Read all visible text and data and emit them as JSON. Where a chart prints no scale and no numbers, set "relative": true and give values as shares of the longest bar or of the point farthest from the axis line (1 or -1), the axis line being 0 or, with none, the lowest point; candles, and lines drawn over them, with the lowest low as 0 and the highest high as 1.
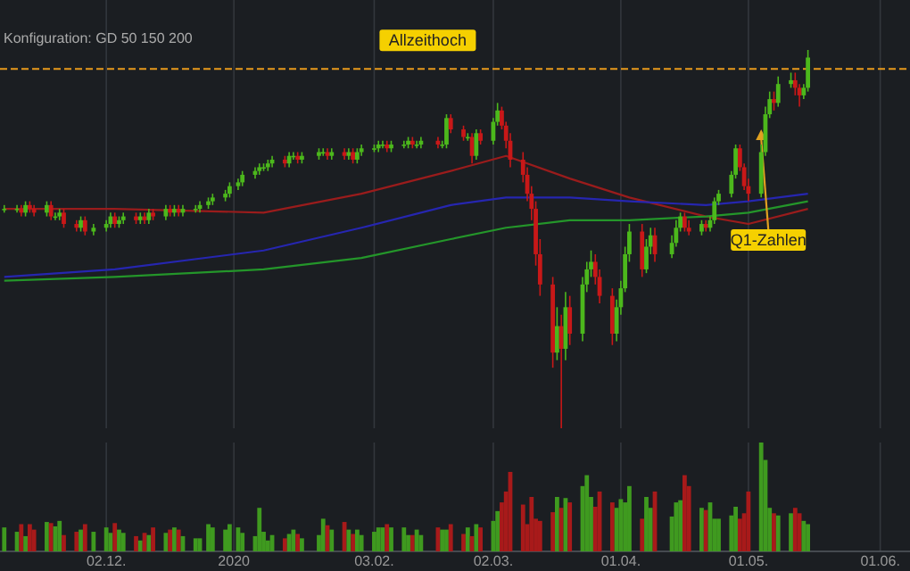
{
  "chart_data": [
    {
      "type": "candlestick",
      "subtitle": "Konfiguration: GD 50 150 200",
      "relative": true,
      "grid": "x",
      "tick_labels": false,
      "xlim": [
        "2019-11-07",
        "2020-06-08"
      ],
      "xticks": [
        {
          "value": "2019-12-02",
          "label": null
        },
        {
          "value": "2020-01-01",
          "label": null
        },
        {
          "value": "2020-02-03",
          "label": null
        },
        {
          "value": "2020-03-02",
          "label": null
        },
        {
          "value": "2020-04-01",
          "label": null
        },
        {
          "value": "2020-05-01",
          "label": null
        },
        {
          "value": "2020-06-01",
          "label": null
        }
      ],
      "x": [
        "2019-11-08",
        "2019-11-11",
        "2019-11-12",
        "2019-11-13",
        "2019-11-14",
        "2019-11-15",
        "2019-11-18",
        "2019-11-19",
        "2019-11-20",
        "2019-11-21",
        "2019-11-22",
        "2019-11-25",
        "2019-11-26",
        "2019-11-27",
        "2019-11-29",
        "2019-12-02",
        "2019-12-03",
        "2019-12-04",
        "2019-12-05",
        "2019-12-06",
        "2019-12-09",
        "2019-12-10",
        "2019-12-11",
        "2019-12-12",
        "2019-12-13",
        "2019-12-16",
        "2019-12-17",
        "2019-12-18",
        "2019-12-19",
        "2019-12-20",
        "2019-12-23",
        "2019-12-24",
        "2019-12-26",
        "2019-12-27",
        "2019-12-30",
        "2019-12-31",
        "2020-01-02",
        "2020-01-03",
        "2020-01-06",
        "2020-01-07",
        "2020-01-08",
        "2020-01-09",
        "2020-01-10",
        "2020-01-13",
        "2020-01-14",
        "2020-01-15",
        "2020-01-16",
        "2020-01-17",
        "2020-01-21",
        "2020-01-22",
        "2020-01-23",
        "2020-01-24",
        "2020-01-27",
        "2020-01-28",
        "2020-01-29",
        "2020-01-30",
        "2020-01-31",
        "2020-02-03",
        "2020-02-04",
        "2020-02-05",
        "2020-02-06",
        "2020-02-07",
        "2020-02-10",
        "2020-02-11",
        "2020-02-12",
        "2020-02-13",
        "2020-02-14",
        "2020-02-18",
        "2020-02-19",
        "2020-02-20",
        "2020-02-21",
        "2020-02-24",
        "2020-02-25",
        "2020-02-26",
        "2020-02-27",
        "2020-02-28",
        "2020-03-02",
        "2020-03-03",
        "2020-03-04",
        "2020-03-05",
        "2020-03-06",
        "2020-03-09",
        "2020-03-10",
        "2020-03-11",
        "2020-03-12",
        "2020-03-13",
        "2020-03-16",
        "2020-03-17",
        "2020-03-18",
        "2020-03-19",
        "2020-03-20",
        "2020-03-23",
        "2020-03-24",
        "2020-03-25",
        "2020-03-26",
        "2020-03-27",
        "2020-03-30",
        "2020-03-31",
        "2020-04-01",
        "2020-04-02",
        "2020-04-03",
        "2020-04-06",
        "2020-04-07",
        "2020-04-08",
        "2020-04-09",
        "2020-04-13",
        "2020-04-14",
        "2020-04-15",
        "2020-04-16",
        "2020-04-17",
        "2020-04-20",
        "2020-04-21",
        "2020-04-22",
        "2020-04-23",
        "2020-04-24",
        "2020-04-27",
        "2020-04-28",
        "2020-04-29",
        "2020-04-30",
        "2020-05-01",
        "2020-05-04",
        "2020-05-05",
        "2020-05-06",
        "2020-05-07",
        "2020-05-08",
        "2020-05-11",
        "2020-05-12",
        "2020-05-13",
        "2020-05-14",
        "2020-05-15"
      ],
      "ohlc": [
        [
          0.58,
          0.59,
          0.57,
          0.58
        ],
        [
          0.58,
          0.59,
          0.57,
          0.58
        ],
        [
          0.58,
          0.59,
          0.56,
          0.57
        ],
        [
          0.57,
          0.6,
          0.56,
          0.59
        ],
        [
          0.59,
          0.6,
          0.57,
          0.58
        ],
        [
          0.58,
          0.59,
          0.56,
          0.57
        ],
        [
          0.57,
          0.6,
          0.56,
          0.59
        ],
        [
          0.59,
          0.6,
          0.55,
          0.56
        ],
        [
          0.56,
          0.57,
          0.55,
          0.56
        ],
        [
          0.56,
          0.58,
          0.55,
          0.57
        ],
        [
          0.57,
          0.58,
          0.53,
          0.54
        ],
        [
          0.54,
          0.55,
          0.52,
          0.53
        ],
        [
          0.53,
          0.56,
          0.52,
          0.55
        ],
        [
          0.55,
          0.56,
          0.51,
          0.52
        ],
        [
          0.52,
          0.54,
          0.51,
          0.53
        ],
        [
          0.53,
          0.55,
          0.52,
          0.54
        ],
        [
          0.54,
          0.57,
          0.53,
          0.56
        ],
        [
          0.56,
          0.57,
          0.53,
          0.54
        ],
        [
          0.54,
          0.56,
          0.53,
          0.55
        ],
        [
          0.55,
          0.57,
          0.54,
          0.56
        ],
        [
          0.56,
          0.57,
          0.54,
          0.55
        ],
        [
          0.55,
          0.57,
          0.54,
          0.56
        ],
        [
          0.56,
          0.57,
          0.54,
          0.55
        ],
        [
          0.55,
          0.58,
          0.54,
          0.57
        ],
        [
          0.57,
          0.58,
          0.55,
          0.56
        ],
        [
          0.56,
          0.59,
          0.55,
          0.58
        ],
        [
          0.58,
          0.59,
          0.56,
          0.57
        ],
        [
          0.57,
          0.59,
          0.56,
          0.58
        ],
        [
          0.58,
          0.59,
          0.56,
          0.57
        ],
        [
          0.57,
          0.59,
          0.56,
          0.58
        ],
        [
          0.58,
          0.59,
          0.57,
          0.58
        ],
        [
          0.58,
          0.6,
          0.57,
          0.59
        ],
        [
          0.59,
          0.61,
          0.58,
          0.6
        ],
        [
          0.6,
          0.62,
          0.59,
          0.61
        ],
        [
          0.61,
          0.63,
          0.6,
          0.62
        ],
        [
          0.62,
          0.65,
          0.61,
          0.64
        ],
        [
          0.64,
          0.66,
          0.63,
          0.65
        ],
        [
          0.65,
          0.68,
          0.64,
          0.67
        ],
        [
          0.67,
          0.69,
          0.66,
          0.68
        ],
        [
          0.68,
          0.7,
          0.67,
          0.69
        ],
        [
          0.69,
          0.7,
          0.68,
          0.69
        ],
        [
          0.69,
          0.71,
          0.68,
          0.7
        ],
        [
          0.7,
          0.72,
          0.69,
          0.71
        ],
        [
          0.71,
          0.72,
          0.69,
          0.7
        ],
        [
          0.7,
          0.73,
          0.69,
          0.72
        ],
        [
          0.72,
          0.73,
          0.71,
          0.72
        ],
        [
          0.72,
          0.73,
          0.7,
          0.71
        ],
        [
          0.71,
          0.73,
          0.7,
          0.72
        ],
        [
          0.72,
          0.74,
          0.71,
          0.73
        ],
        [
          0.73,
          0.74,
          0.72,
          0.73
        ],
        [
          0.73,
          0.74,
          0.71,
          0.72
        ],
        [
          0.72,
          0.74,
          0.71,
          0.73
        ],
        [
          0.73,
          0.74,
          0.71,
          0.72
        ],
        [
          0.72,
          0.74,
          0.71,
          0.73
        ],
        [
          0.73,
          0.74,
          0.7,
          0.71
        ],
        [
          0.71,
          0.74,
          0.7,
          0.73
        ],
        [
          0.73,
          0.75,
          0.72,
          0.74
        ],
        [
          0.74,
          0.75,
          0.73,
          0.74
        ],
        [
          0.74,
          0.76,
          0.73,
          0.75
        ],
        [
          0.75,
          0.76,
          0.74,
          0.75
        ],
        [
          0.75,
          0.76,
          0.73,
          0.74
        ],
        [
          0.74,
          0.76,
          0.73,
          0.75
        ],
        [
          0.75,
          0.76,
          0.74,
          0.75
        ],
        [
          0.75,
          0.77,
          0.74,
          0.76
        ],
        [
          0.76,
          0.77,
          0.74,
          0.75
        ],
        [
          0.75,
          0.76,
          0.74,
          0.75
        ],
        [
          0.75,
          0.77,
          0.74,
          0.76
        ],
        [
          0.76,
          0.77,
          0.74,
          0.75
        ],
        [
          0.75,
          0.76,
          0.74,
          0.75
        ],
        [
          0.75,
          0.83,
          0.74,
          0.82
        ],
        [
          0.82,
          0.83,
          0.78,
          0.79
        ],
        [
          0.79,
          0.8,
          0.76,
          0.77
        ],
        [
          0.77,
          0.78,
          0.76,
          0.77
        ],
        [
          0.77,
          0.78,
          0.7,
          0.72
        ],
        [
          0.72,
          0.79,
          0.71,
          0.78
        ],
        [
          0.78,
          0.79,
          0.75,
          0.76
        ],
        [
          0.76,
          0.82,
          0.75,
          0.81
        ],
        [
          0.81,
          0.86,
          0.8,
          0.84
        ],
        [
          0.84,
          0.85,
          0.79,
          0.8
        ],
        [
          0.8,
          0.81,
          0.74,
          0.76
        ],
        [
          0.76,
          0.78,
          0.69,
          0.71
        ],
        [
          0.71,
          0.73,
          0.65,
          0.67
        ],
        [
          0.67,
          0.69,
          0.6,
          0.62
        ],
        [
          0.62,
          0.64,
          0.55,
          0.58
        ],
        [
          0.58,
          0.6,
          0.43,
          0.46
        ],
        [
          0.46,
          0.5,
          0.35,
          0.38
        ],
        [
          0.38,
          0.4,
          0.16,
          0.2
        ],
        [
          0.2,
          0.32,
          0.18,
          0.27
        ],
        [
          0.27,
          0.3,
          0.0,
          0.21
        ],
        [
          0.21,
          0.36,
          0.18,
          0.32
        ],
        [
          0.32,
          0.35,
          0.22,
          0.25
        ],
        [
          0.25,
          0.4,
          0.23,
          0.38
        ],
        [
          0.38,
          0.44,
          0.36,
          0.42
        ],
        [
          0.42,
          0.47,
          0.4,
          0.44
        ],
        [
          0.44,
          0.46,
          0.38,
          0.4
        ],
        [
          0.4,
          0.42,
          0.33,
          0.35
        ],
        [
          0.35,
          0.37,
          0.22,
          0.25
        ],
        [
          0.25,
          0.34,
          0.23,
          0.32
        ],
        [
          0.32,
          0.39,
          0.3,
          0.37
        ],
        [
          0.37,
          0.48,
          0.36,
          0.46
        ],
        [
          0.46,
          0.54,
          0.44,
          0.52
        ],
        [
          0.52,
          0.54,
          0.4,
          0.42
        ],
        [
          0.42,
          0.5,
          0.41,
          0.48
        ],
        [
          0.48,
          0.53,
          0.46,
          0.51
        ],
        [
          0.51,
          0.53,
          0.44,
          0.46
        ],
        [
          0.46,
          0.51,
          0.45,
          0.49
        ],
        [
          0.49,
          0.55,
          0.48,
          0.53
        ],
        [
          0.53,
          0.57,
          0.52,
          0.56
        ],
        [
          0.56,
          0.57,
          0.52,
          0.53
        ],
        [
          0.53,
          0.55,
          0.51,
          0.52
        ],
        [
          0.52,
          0.55,
          0.51,
          0.54
        ],
        [
          0.54,
          0.55,
          0.52,
          0.53
        ],
        [
          0.53,
          0.56,
          0.52,
          0.55
        ],
        [
          0.55,
          0.61,
          0.54,
          0.6
        ],
        [
          0.6,
          0.63,
          0.59,
          0.62
        ],
        [
          0.62,
          0.68,
          0.61,
          0.67
        ],
        [
          0.67,
          0.75,
          0.66,
          0.74
        ],
        [
          0.74,
          0.75,
          0.68,
          0.69
        ],
        [
          0.69,
          0.7,
          0.63,
          0.64
        ],
        [
          0.64,
          0.66,
          0.6,
          0.62
        ],
        [
          0.62,
          0.75,
          0.61,
          0.73
        ],
        [
          0.73,
          0.85,
          0.72,
          0.83
        ],
        [
          0.83,
          0.89,
          0.82,
          0.87
        ],
        [
          0.87,
          0.89,
          0.84,
          0.86
        ],
        [
          0.86,
          0.93,
          0.85,
          0.91
        ],
        [
          0.91,
          0.94,
          0.9,
          0.92
        ],
        [
          0.92,
          0.94,
          0.88,
          0.9
        ],
        [
          0.9,
          0.91,
          0.85,
          0.88
        ],
        [
          0.88,
          0.91,
          0.87,
          0.9
        ],
        [
          0.9,
          1.0,
          0.89,
          0.98
        ]
      ],
      "colors": [
        "#4cb81c",
        "#4cb81c",
        "#c81818",
        "#4cb81c",
        "#c81818",
        "#c81818",
        "#4cb81c",
        "#c81818",
        "#4cb81c",
        "#4cb81c",
        "#c81818",
        "#c81818",
        "#4cb81c",
        "#c81818",
        "#4cb81c",
        "#4cb81c",
        "#4cb81c",
        "#c81818",
        "#4cb81c",
        "#4cb81c",
        "#c81818",
        "#4cb81c",
        "#c81818",
        "#4cb81c",
        "#c81818",
        "#4cb81c",
        "#c81818",
        "#4cb81c",
        "#c81818",
        "#4cb81c",
        "#4cb81c",
        "#4cb81c",
        "#4cb81c",
        "#4cb81c",
        "#4cb81c",
        "#4cb81c",
        "#4cb81c",
        "#4cb81c",
        "#4cb81c",
        "#4cb81c",
        "#4cb81c",
        "#4cb81c",
        "#4cb81c",
        "#c81818",
        "#4cb81c",
        "#4cb81c",
        "#c81818",
        "#4cb81c",
        "#4cb81c",
        "#4cb81c",
        "#c81818",
        "#4cb81c",
        "#c81818",
        "#4cb81c",
        "#c81818",
        "#4cb81c",
        "#4cb81c",
        "#4cb81c",
        "#4cb81c",
        "#4cb81c",
        "#c81818",
        "#4cb81c",
        "#4cb81c",
        "#4cb81c",
        "#c81818",
        "#4cb81c",
        "#4cb81c",
        "#c81818",
        "#4cb81c",
        "#4cb81c",
        "#c81818",
        "#c81818",
        "#4cb81c",
        "#c81818",
        "#4cb81c",
        "#c81818",
        "#4cb81c",
        "#4cb81c",
        "#c81818",
        "#c81818",
        "#c81818",
        "#c81818",
        "#c81818",
        "#c81818",
        "#c81818",
        "#c81818",
        "#c81818",
        "#4cb81c",
        "#c81818",
        "#4cb81c",
        "#c81818",
        "#4cb81c",
        "#4cb81c",
        "#4cb81c",
        "#c81818",
        "#c81818",
        "#c81818",
        "#4cb81c",
        "#4cb81c",
        "#4cb81c",
        "#4cb81c",
        "#c81818",
        "#4cb81c",
        "#4cb81c",
        "#c81818",
        "#4cb81c",
        "#4cb81c",
        "#4cb81c",
        "#c81818",
        "#c81818",
        "#4cb81c",
        "#c81818",
        "#4cb81c",
        "#4cb81c",
        "#4cb81c",
        "#4cb81c",
        "#4cb81c",
        "#c81818",
        "#c81818",
        "#c81818",
        "#4cb81c",
        "#4cb81c",
        "#4cb81c",
        "#c81818",
        "#4cb81c",
        "#4cb81c",
        "#c81818",
        "#c81818",
        "#4cb81c",
        "#4cb81c"
      ],
      "series": [
        {
          "type": "line",
          "color": "#9a1c1c",
          "x": [
            "2019-11-08",
            "2019-12-04",
            "2020-01-08",
            "2020-01-31",
            "2020-02-21",
            "2020-03-05",
            "2020-03-20",
            "2020-04-03",
            "2020-04-21",
            "2020-05-01",
            "2020-05-15"
          ],
          "values": [
            0.58,
            0.58,
            0.57,
            0.62,
            0.68,
            0.72,
            0.66,
            0.61,
            0.56,
            0.54,
            0.58
          ]
        },
        {
          "type": "line",
          "color": "#2626b0",
          "x": [
            "2019-11-08",
            "2019-12-04",
            "2020-01-08",
            "2020-01-31",
            "2020-02-21",
            "2020-03-05",
            "2020-03-20",
            "2020-04-03",
            "2020-04-21",
            "2020-05-01",
            "2020-05-15"
          ],
          "values": [
            0.4,
            0.42,
            0.47,
            0.53,
            0.59,
            0.61,
            0.61,
            0.6,
            0.59,
            0.6,
            0.62
          ]
        },
        {
          "type": "line",
          "color": "#24962a",
          "x": [
            "2019-11-08",
            "2019-12-04",
            "2020-01-08",
            "2020-01-31",
            "2020-02-21",
            "2020-03-05",
            "2020-03-20",
            "2020-04-03",
            "2020-04-21",
            "2020-05-01",
            "2020-05-15"
          ],
          "values": [
            0.39,
            0.4,
            0.42,
            0.45,
            0.5,
            0.53,
            0.55,
            0.55,
            0.56,
            0.57,
            0.6
          ]
        }
      ],
      "ref_lines": [
        {
          "axis": "y",
          "value": 0.95,
          "label": "Allzeithoch",
          "color": "#e89a1c",
          "line_style": "dashed"
        }
      ],
      "annotations": [
        {
          "text": "Q1-Zahlen",
          "x": "2020-05-04",
          "y": 0.79
        }
      ]
    },
    {
      "type": "bar",
      "relative": true,
      "grid": "x",
      "tick_labels": "x",
      "xlim": [
        "2019-11-07",
        "2020-06-08"
      ],
      "xticks": [
        {
          "value": "2019-12-02",
          "label": "02.12."
        },
        {
          "value": "2020-01-01",
          "label": "2020"
        },
        {
          "value": "2020-02-03",
          "label": "03.02."
        },
        {
          "value": "2020-03-02",
          "label": "02.03."
        },
        {
          "value": "2020-04-01",
          "label": "01.04."
        },
        {
          "value": "2020-05-01",
          "label": "01.05."
        },
        {
          "value": "2020-06-01",
          "label": "01.06."
        }
      ],
      "x": [
        "2019-11-08",
        "2019-11-11",
        "2019-11-12",
        "2019-11-13",
        "2019-11-14",
        "2019-11-15",
        "2019-11-18",
        "2019-11-19",
        "2019-11-20",
        "2019-11-21",
        "2019-11-22",
        "2019-11-25",
        "2019-11-26",
        "2019-11-27",
        "2019-11-29",
        "2019-12-02",
        "2019-12-03",
        "2019-12-04",
        "2019-12-05",
        "2019-12-06",
        "2019-12-09",
        "2019-12-10",
        "2019-12-11",
        "2019-12-12",
        "2019-12-13",
        "2019-12-16",
        "2019-12-17",
        "2019-12-18",
        "2019-12-19",
        "2019-12-20",
        "2019-12-23",
        "2019-12-24",
        "2019-12-26",
        "2019-12-27",
        "2019-12-30",
        "2019-12-31",
        "2020-01-02",
        "2020-01-03",
        "2020-01-06",
        "2020-01-07",
        "2020-01-08",
        "2020-01-09",
        "2020-01-10",
        "2020-01-13",
        "2020-01-14",
        "2020-01-15",
        "2020-01-16",
        "2020-01-17",
        "2020-01-21",
        "2020-01-22",
        "2020-01-23",
        "2020-01-24",
        "2020-01-27",
        "2020-01-28",
        "2020-01-29",
        "2020-01-30",
        "2020-01-31",
        "2020-02-03",
        "2020-02-04",
        "2020-02-05",
        "2020-02-06",
        "2020-02-07",
        "2020-02-10",
        "2020-02-11",
        "2020-02-12",
        "2020-02-13",
        "2020-02-14",
        "2020-02-18",
        "2020-02-19",
        "2020-02-20",
        "2020-02-21",
        "2020-02-24",
        "2020-02-25",
        "2020-02-26",
        "2020-02-27",
        "2020-02-28",
        "2020-03-02",
        "2020-03-03",
        "2020-03-04",
        "2020-03-05",
        "2020-03-06",
        "2020-03-09",
        "2020-03-10",
        "2020-03-11",
        "2020-03-12",
        "2020-03-13",
        "2020-03-16",
        "2020-03-17",
        "2020-03-18",
        "2020-03-19",
        "2020-03-20",
        "2020-03-23",
        "2020-03-24",
        "2020-03-25",
        "2020-03-26",
        "2020-03-27",
        "2020-03-30",
        "2020-03-31",
        "2020-04-01",
        "2020-04-02",
        "2020-04-03",
        "2020-04-06",
        "2020-04-07",
        "2020-04-08",
        "2020-04-09",
        "2020-04-13",
        "2020-04-14",
        "2020-04-15",
        "2020-04-16",
        "2020-04-17",
        "2020-04-20",
        "2020-04-21",
        "2020-04-22",
        "2020-04-23",
        "2020-04-24",
        "2020-04-27",
        "2020-04-28",
        "2020-04-29",
        "2020-04-30",
        "2020-05-01",
        "2020-05-04",
        "2020-05-05",
        "2020-05-06",
        "2020-05-07",
        "2020-05-08",
        "2020-05-11",
        "2020-05-12",
        "2020-05-13",
        "2020-05-14",
        "2020-05-15"
      ],
      "values": [
        0.22,
        0.18,
        0.25,
        0.14,
        0.25,
        0.2,
        0.27,
        0.26,
        0.23,
        0.28,
        0.15,
        0.18,
        0.2,
        0.25,
        0.18,
        0.22,
        0.17,
        0.26,
        0.2,
        0.17,
        0.14,
        0.1,
        0.17,
        0.15,
        0.22,
        0.17,
        0.2,
        0.22,
        0.2,
        0.14,
        0.12,
        0.12,
        0.25,
        0.22,
        0.2,
        0.25,
        0.22,
        0.17,
        0.14,
        0.4,
        0.18,
        0.1,
        0.15,
        0.12,
        0.16,
        0.2,
        0.16,
        0.12,
        0.15,
        0.3,
        0.24,
        0.2,
        0.27,
        0.2,
        0.16,
        0.2,
        0.15,
        0.18,
        0.22,
        0.22,
        0.25,
        0.22,
        0.22,
        0.15,
        0.15,
        0.2,
        0.15,
        0.22,
        0.2,
        0.2,
        0.25,
        0.16,
        0.22,
        0.14,
        0.25,
        0.22,
        0.28,
        0.37,
        0.45,
        0.55,
        0.73,
        0.43,
        0.25,
        0.5,
        0.3,
        0.28,
        0.36,
        0.5,
        0.4,
        0.49,
        0.45,
        0.6,
        0.7,
        0.5,
        0.41,
        0.55,
        0.45,
        0.4,
        0.48,
        0.45,
        0.6,
        0.3,
        0.5,
        0.4,
        0.55,
        0.32,
        0.45,
        0.47,
        0.7,
        0.6,
        0.4,
        0.38,
        0.45,
        0.3,
        0.3,
        0.33,
        0.41,
        0.3,
        0.35,
        0.55,
        1.0,
        0.84,
        0.4,
        0.35,
        0.33,
        0.35,
        0.4,
        0.35,
        0.28,
        0.25
      ],
      "colors": [
        "#3f9a1f",
        "#3f9a1f",
        "#a81a1a",
        "#3f9a1f",
        "#a81a1a",
        "#a81a1a",
        "#3f9a1f",
        "#a81a1a",
        "#3f9a1f",
        "#3f9a1f",
        "#a81a1a",
        "#a81a1a",
        "#3f9a1f",
        "#a81a1a",
        "#3f9a1f",
        "#3f9a1f",
        "#3f9a1f",
        "#a81a1a",
        "#3f9a1f",
        "#3f9a1f",
        "#a81a1a",
        "#3f9a1f",
        "#a81a1a",
        "#3f9a1f",
        "#a81a1a",
        "#3f9a1f",
        "#a81a1a",
        "#3f9a1f",
        "#a81a1a",
        "#3f9a1f",
        "#3f9a1f",
        "#3f9a1f",
        "#3f9a1f",
        "#3f9a1f",
        "#3f9a1f",
        "#3f9a1f",
        "#3f9a1f",
        "#3f9a1f",
        "#3f9a1f",
        "#3f9a1f",
        "#3f9a1f",
        "#3f9a1f",
        "#3f9a1f",
        "#a81a1a",
        "#3f9a1f",
        "#3f9a1f",
        "#a81a1a",
        "#3f9a1f",
        "#3f9a1f",
        "#3f9a1f",
        "#a81a1a",
        "#3f9a1f",
        "#a81a1a",
        "#3f9a1f",
        "#a81a1a",
        "#3f9a1f",
        "#3f9a1f",
        "#3f9a1f",
        "#3f9a1f",
        "#3f9a1f",
        "#a81a1a",
        "#3f9a1f",
        "#3f9a1f",
        "#3f9a1f",
        "#a81a1a",
        "#3f9a1f",
        "#3f9a1f",
        "#a81a1a",
        "#3f9a1f",
        "#3f9a1f",
        "#a81a1a",
        "#a81a1a",
        "#3f9a1f",
        "#a81a1a",
        "#3f9a1f",
        "#a81a1a",
        "#3f9a1f",
        "#3f9a1f",
        "#a81a1a",
        "#a81a1a",
        "#a81a1a",
        "#a81a1a",
        "#a81a1a",
        "#a81a1a",
        "#a81a1a",
        "#a81a1a",
        "#a81a1a",
        "#3f9a1f",
        "#a81a1a",
        "#3f9a1f",
        "#a81a1a",
        "#3f9a1f",
        "#3f9a1f",
        "#3f9a1f",
        "#a81a1a",
        "#a81a1a",
        "#a81a1a",
        "#3f9a1f",
        "#3f9a1f",
        "#3f9a1f",
        "#3f9a1f",
        "#a81a1a",
        "#3f9a1f",
        "#3f9a1f",
        "#a81a1a",
        "#3f9a1f",
        "#3f9a1f",
        "#3f9a1f",
        "#a81a1a",
        "#a81a1a",
        "#3f9a1f",
        "#a81a1a",
        "#3f9a1f",
        "#3f9a1f",
        "#3f9a1f",
        "#3f9a1f",
        "#3f9a1f",
        "#a81a1a",
        "#a81a1a",
        "#a81a1a",
        "#3f9a1f",
        "#3f9a1f",
        "#3f9a1f",
        "#a81a1a",
        "#3f9a1f",
        "#3f9a1f",
        "#a81a1a",
        "#a81a1a",
        "#3f9a1f",
        "#3f9a1f"
      ]
    }
  ]
}
